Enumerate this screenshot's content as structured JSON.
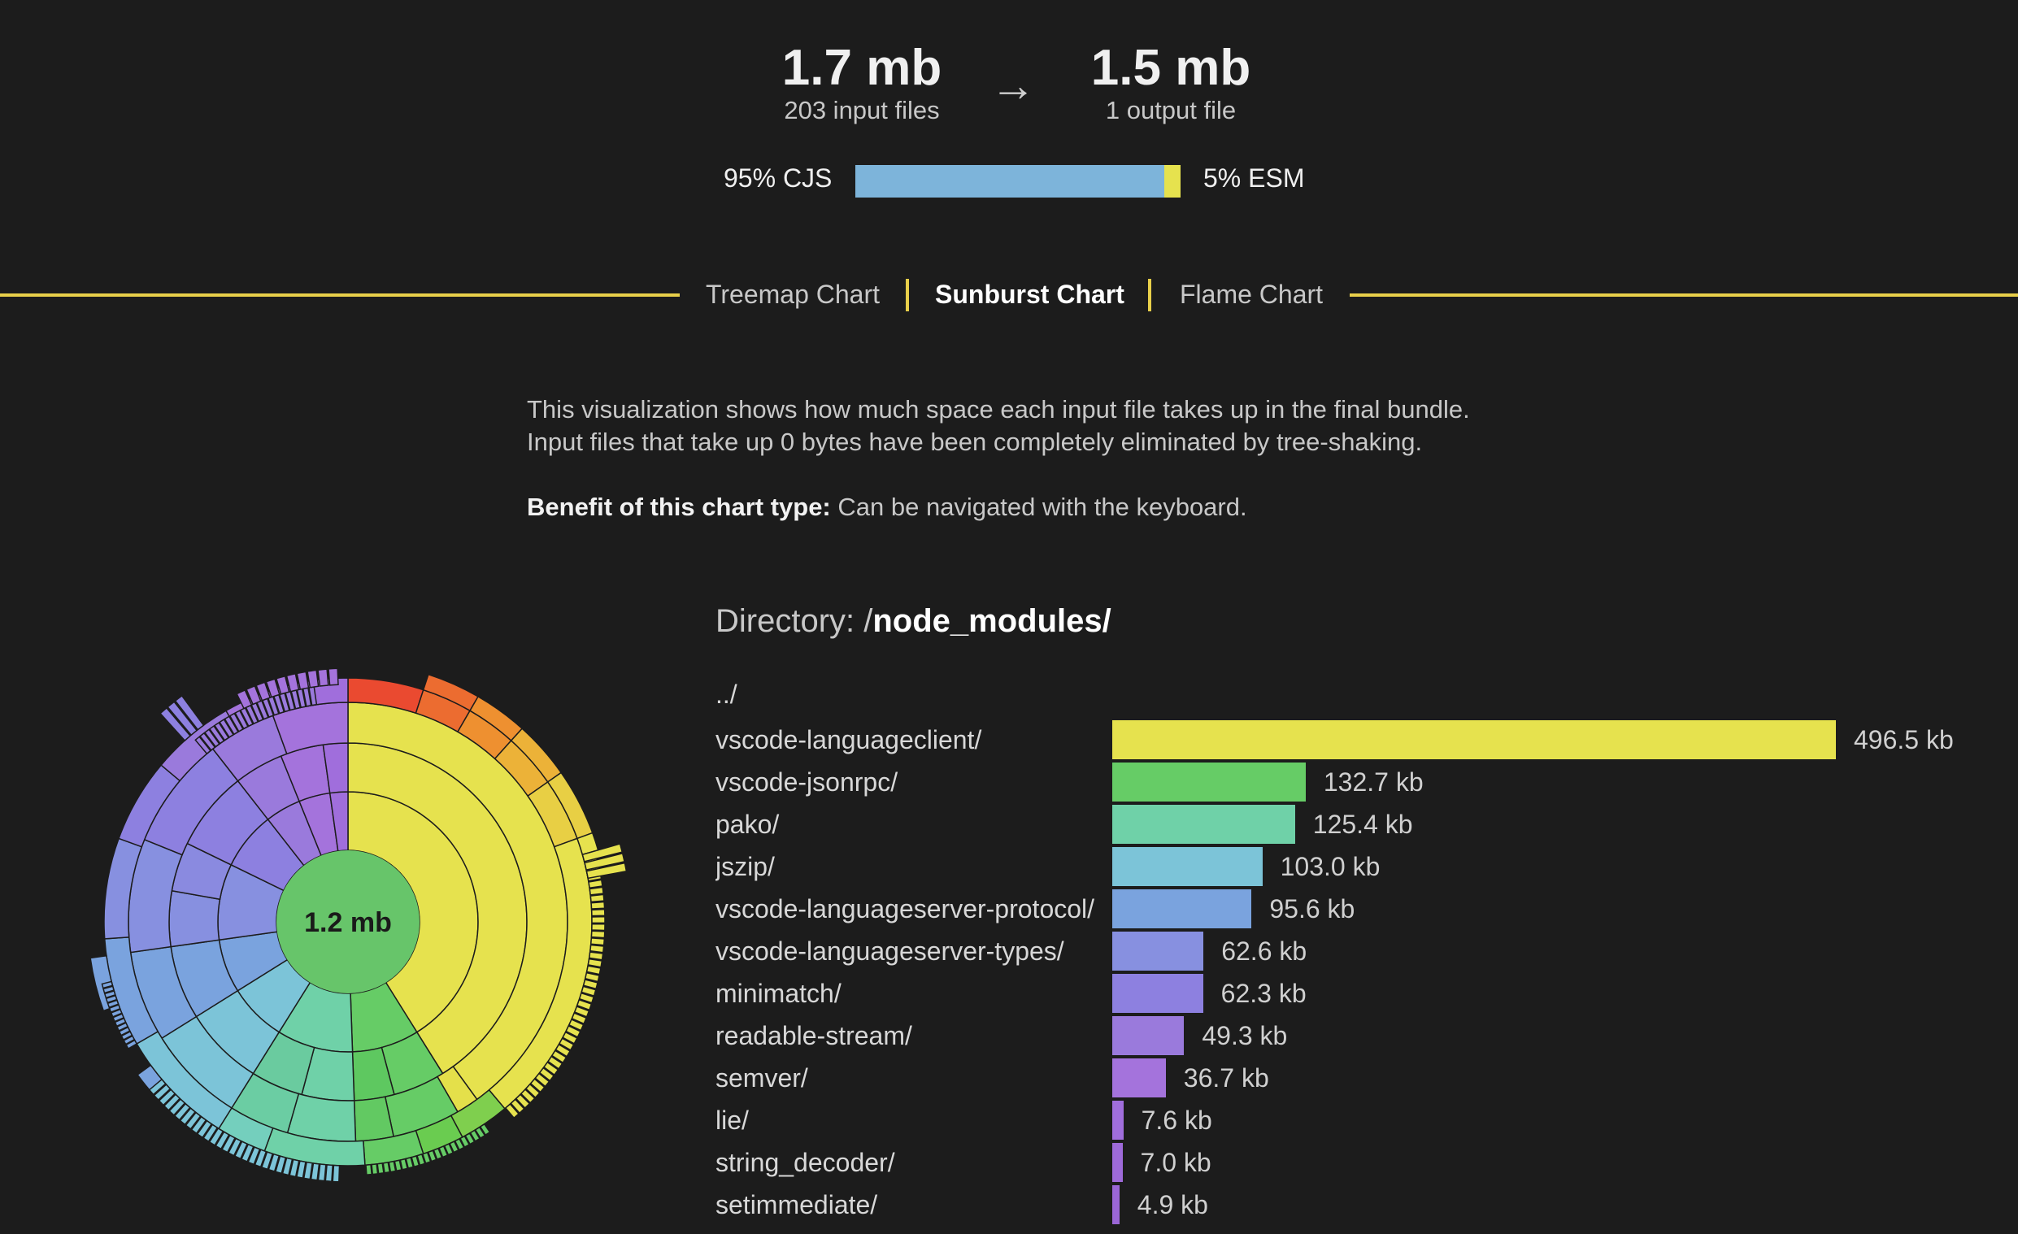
{
  "summary": {
    "input_size": "1.7 mb",
    "input_files": "203 input files",
    "arrow": "→",
    "output_size": "1.5 mb",
    "output_files": "1 output file"
  },
  "format": {
    "cjs_label": "95% CJS",
    "esm_label": "5% ESM",
    "cjs_fraction": 0.95,
    "esm_fraction": 0.05,
    "cjs_color": "#7db4da",
    "esm_color": "#e6e24e"
  },
  "tabs": [
    {
      "label": "Treemap Chart",
      "active": false
    },
    {
      "label": "Sunburst Chart",
      "active": true
    },
    {
      "label": "Flame Chart",
      "active": false
    }
  ],
  "description": {
    "line1": "This visualization shows how much space each input file takes up in the final bundle.",
    "line2": "Input files that take up 0 bytes have been completely eliminated by tree-shaking.",
    "benefit_label": "Benefit of this chart type:",
    "benefit_text": " Can be navigated with the keyboard."
  },
  "directory": {
    "prefix": "Directory: /",
    "path": "node_modules/",
    "parent": "../"
  },
  "sunburst": {
    "center_label": "1.2 mb",
    "center_color": "#67c56a"
  },
  "chart_data": {
    "type": "bar",
    "orientation": "horizontal",
    "categories": [
      "vscode-languageclient/",
      "vscode-jsonrpc/",
      "pako/",
      "jszip/",
      "vscode-languageserver-protocol/",
      "vscode-languageserver-types/",
      "minimatch/",
      "readable-stream/",
      "semver/",
      "lie/",
      "string_decoder/",
      "setimmediate/"
    ],
    "values": [
      496.5,
      132.7,
      125.4,
      103.0,
      95.6,
      62.6,
      62.3,
      49.3,
      36.7,
      7.6,
      7.0,
      4.9
    ],
    "value_labels": [
      "496.5 kb",
      "132.7 kb",
      "125.4 kb",
      "103.0 kb",
      "95.6 kb",
      "62.6 kb",
      "62.3 kb",
      "49.3 kb",
      "36.7 kb",
      "7.6 kb",
      "7.0 kb",
      "4.9 kb"
    ],
    "unit": "kb",
    "colors": [
      "#e6e24e",
      "#66cc66",
      "#6fd1a8",
      "#7cc4d8",
      "#7aa3de",
      "#8790e0",
      "#8d80e0",
      "#9a7adc",
      "#a473dc",
      "#a06edc",
      "#9e6ad9",
      "#9a66d6"
    ]
  }
}
